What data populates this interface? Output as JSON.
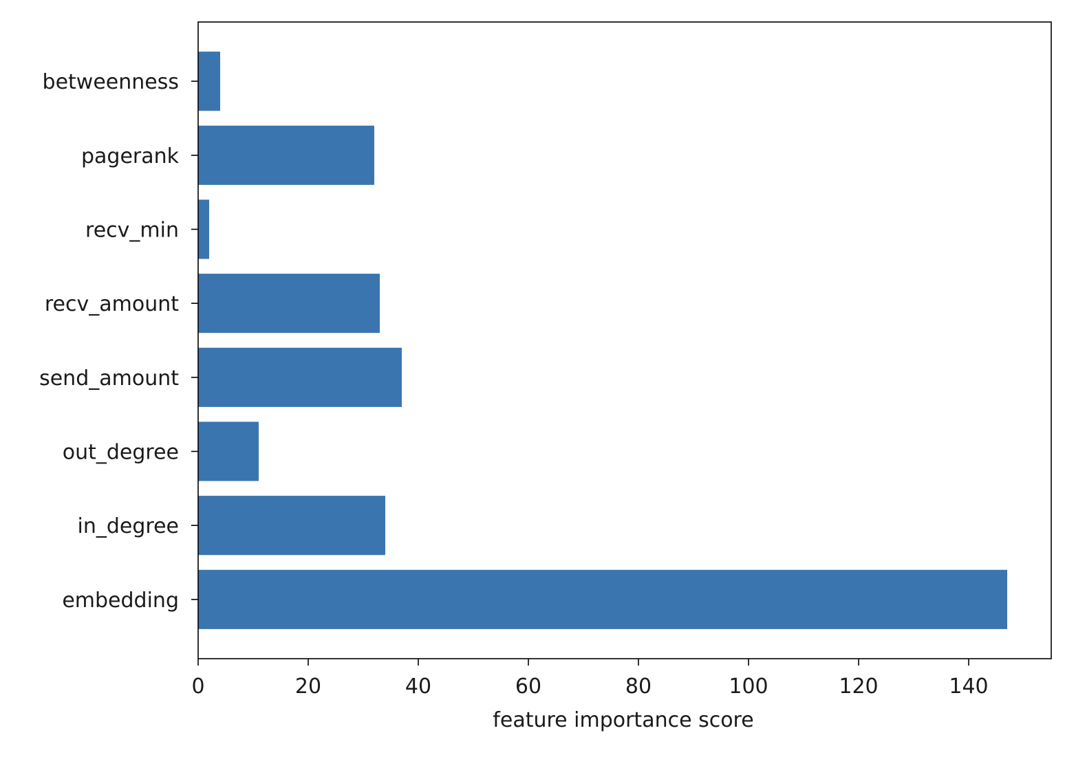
{
  "chart_data": {
    "type": "bar",
    "orientation": "horizontal",
    "categories": [
      "embedding",
      "in_degree",
      "out_degree",
      "send_amount",
      "recv_amount",
      "recv_min",
      "pagerank",
      "betweenness"
    ],
    "values": [
      147,
      34,
      11,
      37,
      33,
      2,
      32,
      4
    ],
    "title": "",
    "xlabel": "feature importance score",
    "ylabel": "",
    "xlim": [
      0,
      155
    ],
    "xticks": [
      0,
      20,
      40,
      60,
      80,
      100,
      120,
      140
    ],
    "grid": false,
    "legend": "none",
    "bar_color": "#3a75af"
  }
}
